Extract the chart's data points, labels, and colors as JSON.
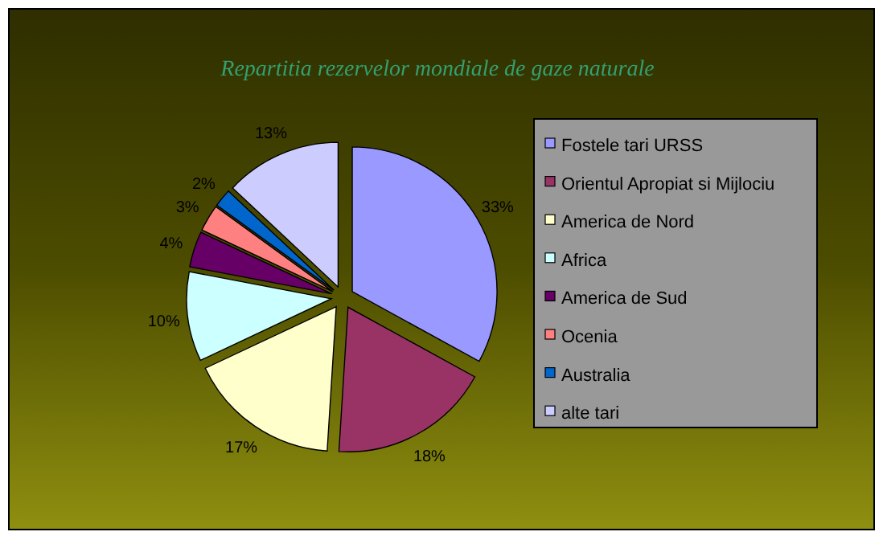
{
  "chart_data": {
    "type": "pie",
    "title": "Repartitia rezervelor mondiale de gaze naturale",
    "categories": [
      "Fostele tari URSS",
      "Orientul Apropiat si Mijlociu",
      "America de Nord",
      "Africa",
      "America de Sud",
      "Ocenia",
      "Australia",
      "alte tari"
    ],
    "values": [
      33,
      18,
      17,
      10,
      4,
      3,
      2,
      13
    ],
    "colors": [
      "#9999ff",
      "#993366",
      "#ffffcc",
      "#ccffff",
      "#660066",
      "#ff8080",
      "#0066cc",
      "#ccccff"
    ],
    "value_labels": [
      "33%",
      "18%",
      "17%",
      "10%",
      "4%",
      "3%",
      "2%",
      "13%"
    ],
    "legend": "right"
  }
}
